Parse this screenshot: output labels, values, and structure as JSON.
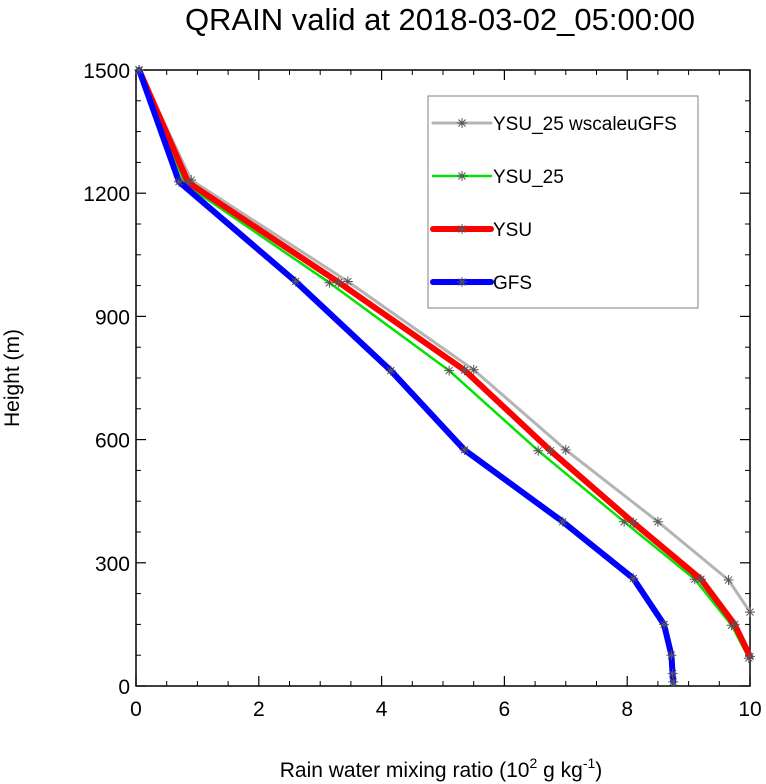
{
  "chart_data": {
    "type": "line",
    "title": "QRAIN valid at 2018-03-02_05:00:00",
    "xlabel": "Rain water mixing ratio (10",
    "xlabel_sup1": "2",
    "xlabel_mid": " g kg",
    "xlabel_sup2": "-1",
    "xlabel_end": ")",
    "ylabel": "Height (m)",
    "xlim": [
      0,
      10
    ],
    "ylim": [
      0,
      1500
    ],
    "xticks": [
      0,
      2,
      4,
      6,
      8,
      10
    ],
    "yticks": [
      0,
      300,
      600,
      900,
      1200,
      1500
    ],
    "grid": false,
    "legend_position": "top-right",
    "series": [
      {
        "name": "YSU_25 wscaleuGFS",
        "color": "#b4b4b4",
        "width": 3,
        "points": [
          [
            0.05,
            1500
          ],
          [
            0.9,
            1232
          ],
          [
            3.45,
            985
          ],
          [
            5.5,
            770
          ],
          [
            7.0,
            575
          ],
          [
            8.5,
            400
          ],
          [
            9.65,
            258
          ],
          [
            10.0,
            180
          ]
        ]
      },
      {
        "name": "YSU_25",
        "color": "#00e400",
        "width": 2.5,
        "points": [
          [
            0.05,
            1500
          ],
          [
            0.8,
            1222
          ],
          [
            3.15,
            982
          ],
          [
            5.1,
            768
          ],
          [
            6.55,
            573
          ],
          [
            7.95,
            400
          ],
          [
            9.1,
            260
          ],
          [
            9.7,
            148
          ],
          [
            9.98,
            68
          ]
        ]
      },
      {
        "name": "YSU",
        "color": "#ff0000",
        "width": 6,
        "points": [
          [
            0.05,
            1500
          ],
          [
            0.85,
            1226
          ],
          [
            3.3,
            983
          ],
          [
            5.35,
            769
          ],
          [
            6.75,
            573
          ],
          [
            8.1,
            398
          ],
          [
            9.2,
            260
          ],
          [
            9.75,
            150
          ],
          [
            10.0,
            72
          ]
        ]
      },
      {
        "name": "GFS",
        "color": "#0000ff",
        "width": 6,
        "points": [
          [
            0.05,
            1500
          ],
          [
            0.7,
            1228
          ],
          [
            2.6,
            985
          ],
          [
            4.15,
            768
          ],
          [
            5.35,
            575
          ],
          [
            6.95,
            400
          ],
          [
            8.1,
            262
          ],
          [
            8.6,
            150
          ],
          [
            8.72,
            75
          ],
          [
            8.74,
            30
          ],
          [
            8.75,
            10
          ]
        ]
      }
    ]
  }
}
